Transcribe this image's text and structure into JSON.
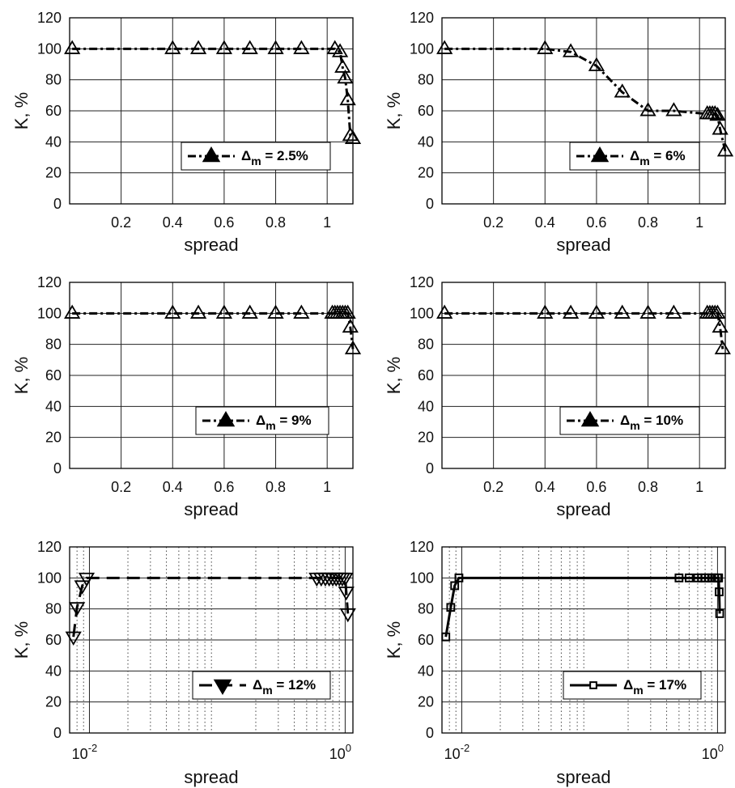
{
  "chart_data": [
    {
      "type": "line",
      "xscale": "linear",
      "xlim": [
        0,
        1.1
      ],
      "ylim": [
        0,
        120
      ],
      "xticks": [
        0.2,
        0.4,
        0.6,
        0.8,
        1
      ],
      "xtick_labels": [
        "0.2",
        "0.4",
        "0.6",
        "0.8",
        "1"
      ],
      "yticks": [
        0,
        20,
        40,
        60,
        80,
        100,
        120
      ],
      "ytick_labels": [
        "0",
        "20",
        "40",
        "60",
        "80",
        "100",
        "120"
      ],
      "xlabel": "spread",
      "ylabel": "K, %",
      "grid": true,
      "legend_position": "center-right",
      "series": [
        {
          "name": "Δm = 2.5%",
          "line_style": "dash-dot",
          "marker": "triangle-up",
          "x": [
            0.01,
            0.4,
            0.5,
            0.6,
            0.7,
            0.8,
            0.9,
            1.03,
            1.05,
            1.06,
            1.07,
            1.08,
            1.09,
            1.1
          ],
          "y": [
            100,
            100,
            100,
            100,
            100,
            100,
            100,
            100,
            98,
            88,
            81,
            67,
            44,
            42
          ]
        }
      ]
    },
    {
      "type": "line",
      "xscale": "linear",
      "xlim": [
        0,
        1.1
      ],
      "ylim": [
        0,
        120
      ],
      "xticks": [
        0.2,
        0.4,
        0.6,
        0.8,
        1
      ],
      "xtick_labels": [
        "0.2",
        "0.4",
        "0.6",
        "0.8",
        "1"
      ],
      "yticks": [
        0,
        20,
        40,
        60,
        80,
        100,
        120
      ],
      "ytick_labels": [
        "0",
        "20",
        "40",
        "60",
        "80",
        "100",
        "120"
      ],
      "xlabel": "spread",
      "ylabel": "K, %",
      "grid": true,
      "legend_position": "center-right",
      "series": [
        {
          "name": "Δm = 6%",
          "line_style": "dash-dot",
          "marker": "triangle-up",
          "x": [
            0.01,
            0.4,
            0.5,
            0.6,
            0.7,
            0.8,
            0.9,
            1.03,
            1.04,
            1.05,
            1.06,
            1.07,
            1.08,
            1.1
          ],
          "y": [
            100,
            100,
            98,
            89,
            72,
            60,
            60,
            58,
            58,
            58,
            58,
            57,
            48,
            34
          ]
        }
      ]
    },
    {
      "type": "line",
      "xscale": "linear",
      "xlim": [
        0,
        1.1
      ],
      "ylim": [
        0,
        120
      ],
      "xticks": [
        0.2,
        0.4,
        0.6,
        0.8,
        1
      ],
      "xtick_labels": [
        "0.2",
        "0.4",
        "0.6",
        "0.8",
        "1"
      ],
      "yticks": [
        0,
        20,
        40,
        60,
        80,
        100,
        120
      ],
      "ytick_labels": [
        "0",
        "20",
        "40",
        "60",
        "80",
        "100",
        "120"
      ],
      "xlabel": "spread",
      "ylabel": "K, %",
      "grid": true,
      "legend_position": "center-right",
      "series": [
        {
          "name": "Δm = 9%",
          "line_style": "dash-dot",
          "marker": "triangle-up",
          "x": [
            0.01,
            0.4,
            0.5,
            0.6,
            0.7,
            0.8,
            0.9,
            1.02,
            1.03,
            1.04,
            1.05,
            1.06,
            1.07,
            1.08,
            1.09,
            1.1
          ],
          "y": [
            100,
            100,
            100,
            100,
            100,
            100,
            100,
            100,
            100,
            100,
            100,
            100,
            100,
            100,
            91,
            77
          ]
        }
      ]
    },
    {
      "type": "line",
      "xscale": "linear",
      "xlim": [
        0,
        1.1
      ],
      "ylim": [
        0,
        120
      ],
      "xticks": [
        0.2,
        0.4,
        0.6,
        0.8,
        1
      ],
      "xtick_labels": [
        "0.2",
        "0.4",
        "0.6",
        "0.8",
        "1"
      ],
      "yticks": [
        0,
        20,
        40,
        60,
        80,
        100,
        120
      ],
      "ytick_labels": [
        "0",
        "20",
        "40",
        "60",
        "80",
        "100",
        "120"
      ],
      "xlabel": "spread",
      "ylabel": "K, %",
      "grid": true,
      "legend_position": "center-right",
      "series": [
        {
          "name": "Δm = 10%",
          "line_style": "dash-dot",
          "marker": "triangle-up",
          "x": [
            0.01,
            0.4,
            0.5,
            0.6,
            0.7,
            0.8,
            0.9,
            1.03,
            1.04,
            1.05,
            1.06,
            1.07,
            1.08,
            1.09
          ],
          "y": [
            100,
            100,
            100,
            100,
            100,
            100,
            100,
            100,
            100,
            100,
            100,
            100,
            91,
            77
          ]
        }
      ]
    },
    {
      "type": "line",
      "xscale": "log",
      "xlim": [
        0.007,
        1.15
      ],
      "ylim": [
        0,
        120
      ],
      "xticks": [
        0.01,
        1
      ],
      "xtick_labels": [
        [
          "10",
          "-2"
        ],
        [
          "10",
          "0"
        ]
      ],
      "yticks": [
        0,
        20,
        40,
        60,
        80,
        100,
        120
      ],
      "ytick_labels": [
        "0",
        "20",
        "40",
        "60",
        "80",
        "100",
        "120"
      ],
      "xlabel": "spread",
      "ylabel": "K, %",
      "grid": true,
      "minor_grid": true,
      "legend_position": "bottom-right",
      "series": [
        {
          "name": "Δm = 12%",
          "line_style": "dashed",
          "marker": "triangle-down",
          "x": [
            0.0075,
            0.008,
            0.0088,
            0.0095,
            0.6,
            0.65,
            0.7,
            0.75,
            0.8,
            0.85,
            0.9,
            0.95,
            1.0,
            1.02,
            1.05
          ],
          "y": [
            62,
            81,
            95,
            100,
            100,
            100,
            100,
            100,
            100,
            100,
            100,
            100,
            100,
            91,
            77
          ]
        }
      ]
    },
    {
      "type": "line",
      "xscale": "log",
      "xlim": [
        0.007,
        1.15
      ],
      "ylim": [
        0,
        120
      ],
      "xticks": [
        0.01,
        1
      ],
      "xtick_labels": [
        [
          "10",
          "-2"
        ],
        [
          "10",
          "0"
        ]
      ],
      "yticks": [
        0,
        20,
        40,
        60,
        80,
        100,
        120
      ],
      "ytick_labels": [
        "0",
        "20",
        "40",
        "60",
        "80",
        "100",
        "120"
      ],
      "xlabel": "spread",
      "ylabel": "K, %",
      "grid": true,
      "minor_grid": true,
      "legend_position": "bottom-right",
      "series": [
        {
          "name": "Δm = 17%",
          "line_style": "solid",
          "marker": "square",
          "x": [
            0.0075,
            0.0082,
            0.0088,
            0.0095,
            0.5,
            0.6,
            0.7,
            0.75,
            0.8,
            0.85,
            0.9,
            0.95,
            1.0,
            1.02,
            1.03,
            1.04
          ],
          "y": [
            62,
            81,
            95,
            100,
            100,
            100,
            100,
            100,
            100,
            100,
            100,
            100,
            100,
            100,
            91,
            77
          ]
        }
      ]
    }
  ]
}
